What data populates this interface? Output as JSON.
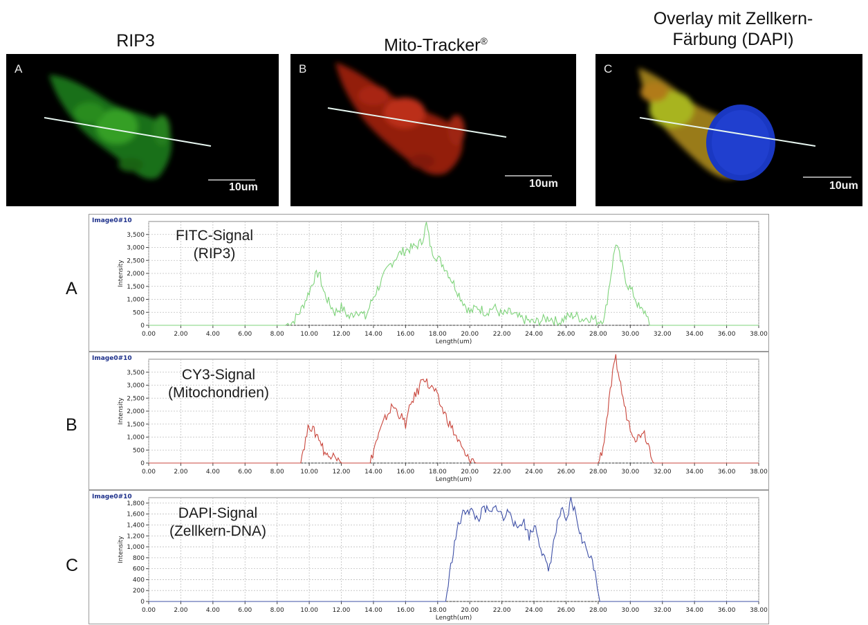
{
  "images": [
    {
      "letter": "A",
      "title": "RIP3",
      "title_sup": "",
      "title_line2": "",
      "scalebar": "10um"
    },
    {
      "letter": "B",
      "title": "Mito-Tracker",
      "title_sup": "®",
      "title_line2": "",
      "scalebar": "10um"
    },
    {
      "letter": "C",
      "title": "Overlay mit Zellkern-",
      "title_sup": "",
      "title_line2": "Färbung (DAPI)",
      "scalebar": "10um"
    }
  ],
  "colors": {
    "green": "#7ed37a",
    "red": "#c9463c",
    "blue": "#3d4fa6",
    "grid": "#bdbdbd",
    "axis": "#222222",
    "tag": "#1c2f8a"
  },
  "chart_data": [
    {
      "type": "line",
      "panel_letter": "A",
      "image_tag": "Image0#10",
      "signal_label_1": "FITC-Signal",
      "signal_label_2": "(RIP3)",
      "xlabel": "Length(um)",
      "ylabel": "Intensity",
      "xlim": [
        0,
        38
      ],
      "ylim": [
        0,
        4000
      ],
      "yticks": [
        0,
        500,
        1000,
        1500,
        2000,
        2500,
        3000,
        3500
      ],
      "ytick_labels": [
        "0",
        "500",
        "1,000",
        "1,500",
        "2,000",
        "2,500",
        "3,000",
        "3,500"
      ],
      "grid": true,
      "series": [
        {
          "color": "#7ed37a",
          "x": [
            0,
            8.5,
            9.0,
            9.5,
            10.0,
            10.3,
            10.6,
            10.9,
            11.2,
            11.6,
            12.0,
            12.5,
            13.0,
            13.5,
            14.0,
            14.5,
            15.0,
            15.5,
            16.0,
            16.5,
            17.0,
            17.3,
            17.6,
            18.0,
            18.5,
            19.0,
            19.5,
            20.0,
            20.5,
            21.0,
            21.5,
            22.0,
            22.5,
            23.0,
            23.5,
            24.0,
            24.5,
            25.0,
            25.5,
            26.0,
            26.5,
            27.0,
            27.5,
            28.0,
            28.4,
            28.8,
            29.1,
            29.4,
            29.8,
            30.2,
            30.6,
            31.0,
            31.2,
            38.0
          ],
          "y": [
            0,
            0,
            150,
            600,
            1300,
            1800,
            2050,
            1300,
            900,
            500,
            700,
            300,
            600,
            300,
            1100,
            1700,
            2300,
            2700,
            2900,
            3000,
            3200,
            3900,
            2900,
            2600,
            2200,
            1600,
            1000,
            500,
            700,
            500,
            700,
            400,
            500,
            300,
            200,
            100,
            200,
            300,
            100,
            300,
            400,
            250,
            300,
            150,
            300,
            2000,
            3200,
            2500,
            1600,
            1200,
            600,
            500,
            0,
            0
          ]
        }
      ]
    },
    {
      "type": "line",
      "panel_letter": "B",
      "image_tag": "Image0#10",
      "signal_label_1": "CY3-Signal",
      "signal_label_2": "(Mitochondrien)",
      "xlabel": "Length(um)",
      "ylabel": "Intensity",
      "xlim": [
        0,
        38
      ],
      "ylim": [
        0,
        4000
      ],
      "yticks": [
        0,
        500,
        1000,
        1500,
        2000,
        2500,
        3000,
        3500
      ],
      "ytick_labels": [
        "0",
        "500",
        "1,000",
        "1,500",
        "2,000",
        "2,500",
        "3,000",
        "3,500"
      ],
      "grid": true,
      "series": [
        {
          "color": "#c9463c",
          "x": [
            0,
            9.4,
            9.7,
            10.0,
            10.3,
            10.6,
            10.9,
            11.2,
            11.5,
            11.8,
            12.0,
            13.8,
            14.1,
            14.4,
            14.8,
            15.2,
            15.6,
            16.0,
            16.4,
            16.8,
            17.1,
            17.4,
            17.8,
            18.2,
            18.6,
            19.0,
            19.4,
            19.8,
            20.2,
            20.4,
            28.0,
            28.3,
            28.6,
            28.9,
            29.1,
            29.4,
            29.7,
            30.0,
            30.4,
            30.8,
            31.2,
            31.5,
            38.0
          ],
          "y": [
            0,
            0,
            700,
            1500,
            1200,
            1000,
            500,
            200,
            500,
            100,
            0,
            0,
            700,
            1200,
            1800,
            2200,
            1900,
            1500,
            2400,
            2800,
            3400,
            3000,
            2800,
            2200,
            1700,
            1200,
            700,
            200,
            100,
            0,
            0,
            600,
            2000,
            3400,
            4000,
            3000,
            2000,
            1400,
            900,
            1300,
            600,
            0,
            0
          ]
        }
      ]
    },
    {
      "type": "line",
      "panel_letter": "C",
      "image_tag": "Image0#10",
      "signal_label_1": "DAPI-Signal",
      "signal_label_2": "(Zellkern-DNA)",
      "xlabel": "Length(um)",
      "ylabel": "Intensity",
      "xlim": [
        0,
        38
      ],
      "ylim": [
        0,
        1900
      ],
      "yticks": [
        0,
        200,
        400,
        600,
        800,
        1000,
        1200,
        1400,
        1600,
        1800
      ],
      "ytick_labels": [
        "0",
        "200",
        "400",
        "600",
        "800",
        "1,000",
        "1,200",
        "1,400",
        "1,600",
        "1,800"
      ],
      "grid": true,
      "series": [
        {
          "color": "#3d4fa6",
          "x": [
            0,
            18.5,
            18.9,
            19.2,
            19.5,
            19.8,
            20.1,
            20.5,
            20.9,
            21.3,
            21.7,
            22.1,
            22.5,
            22.9,
            23.3,
            23.7,
            24.1,
            24.5,
            24.9,
            25.3,
            25.7,
            26.0,
            26.3,
            26.6,
            27.0,
            27.4,
            27.8,
            28.1,
            38.0
          ],
          "y": [
            0,
            0,
            800,
            1300,
            1550,
            1700,
            1650,
            1500,
            1700,
            1600,
            1750,
            1500,
            1700,
            1300,
            1500,
            1200,
            1400,
            900,
            550,
            1200,
            1700,
            1400,
            1850,
            1600,
            1100,
            900,
            600,
            0,
            0
          ]
        }
      ]
    }
  ]
}
